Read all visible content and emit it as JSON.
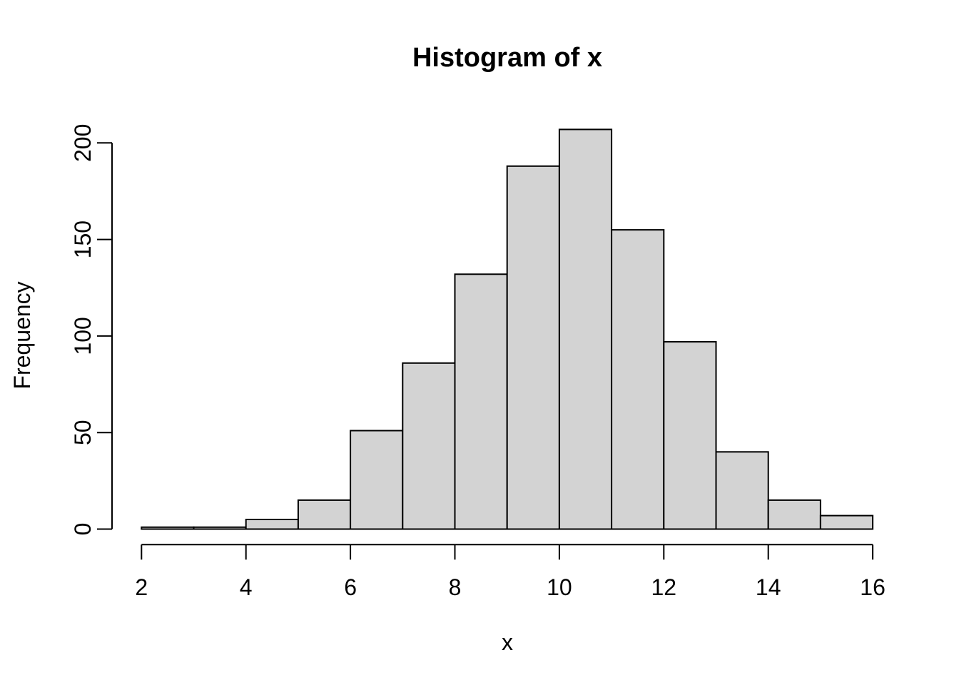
{
  "figure": {
    "title": "Histogram of x",
    "xlab": "x",
    "ylab": "Frequency"
  },
  "chart_data": {
    "type": "bar",
    "subtype": "histogram",
    "title": "Histogram of x",
    "xlabel": "x",
    "ylabel": "Frequency",
    "bin_breaks": [
      2,
      3,
      4,
      5,
      6,
      7,
      8,
      9,
      10,
      11,
      12,
      13,
      14,
      15,
      16
    ],
    "counts": [
      1,
      1,
      5,
      15,
      51,
      86,
      132,
      188,
      207,
      155,
      97,
      40,
      15,
      7
    ],
    "x_ticks": [
      2,
      4,
      6,
      8,
      10,
      12,
      14,
      16
    ],
    "y_ticks": [
      0,
      50,
      100,
      150,
      200
    ],
    "xlim": [
      2,
      16
    ],
    "ylim": [
      0,
      200
    ],
    "grid": false,
    "legend": false,
    "colors": {
      "bar_fill": "#d3d3d3",
      "bar_stroke": "#000000",
      "axis": "#000000",
      "background": "#ffffff"
    }
  }
}
